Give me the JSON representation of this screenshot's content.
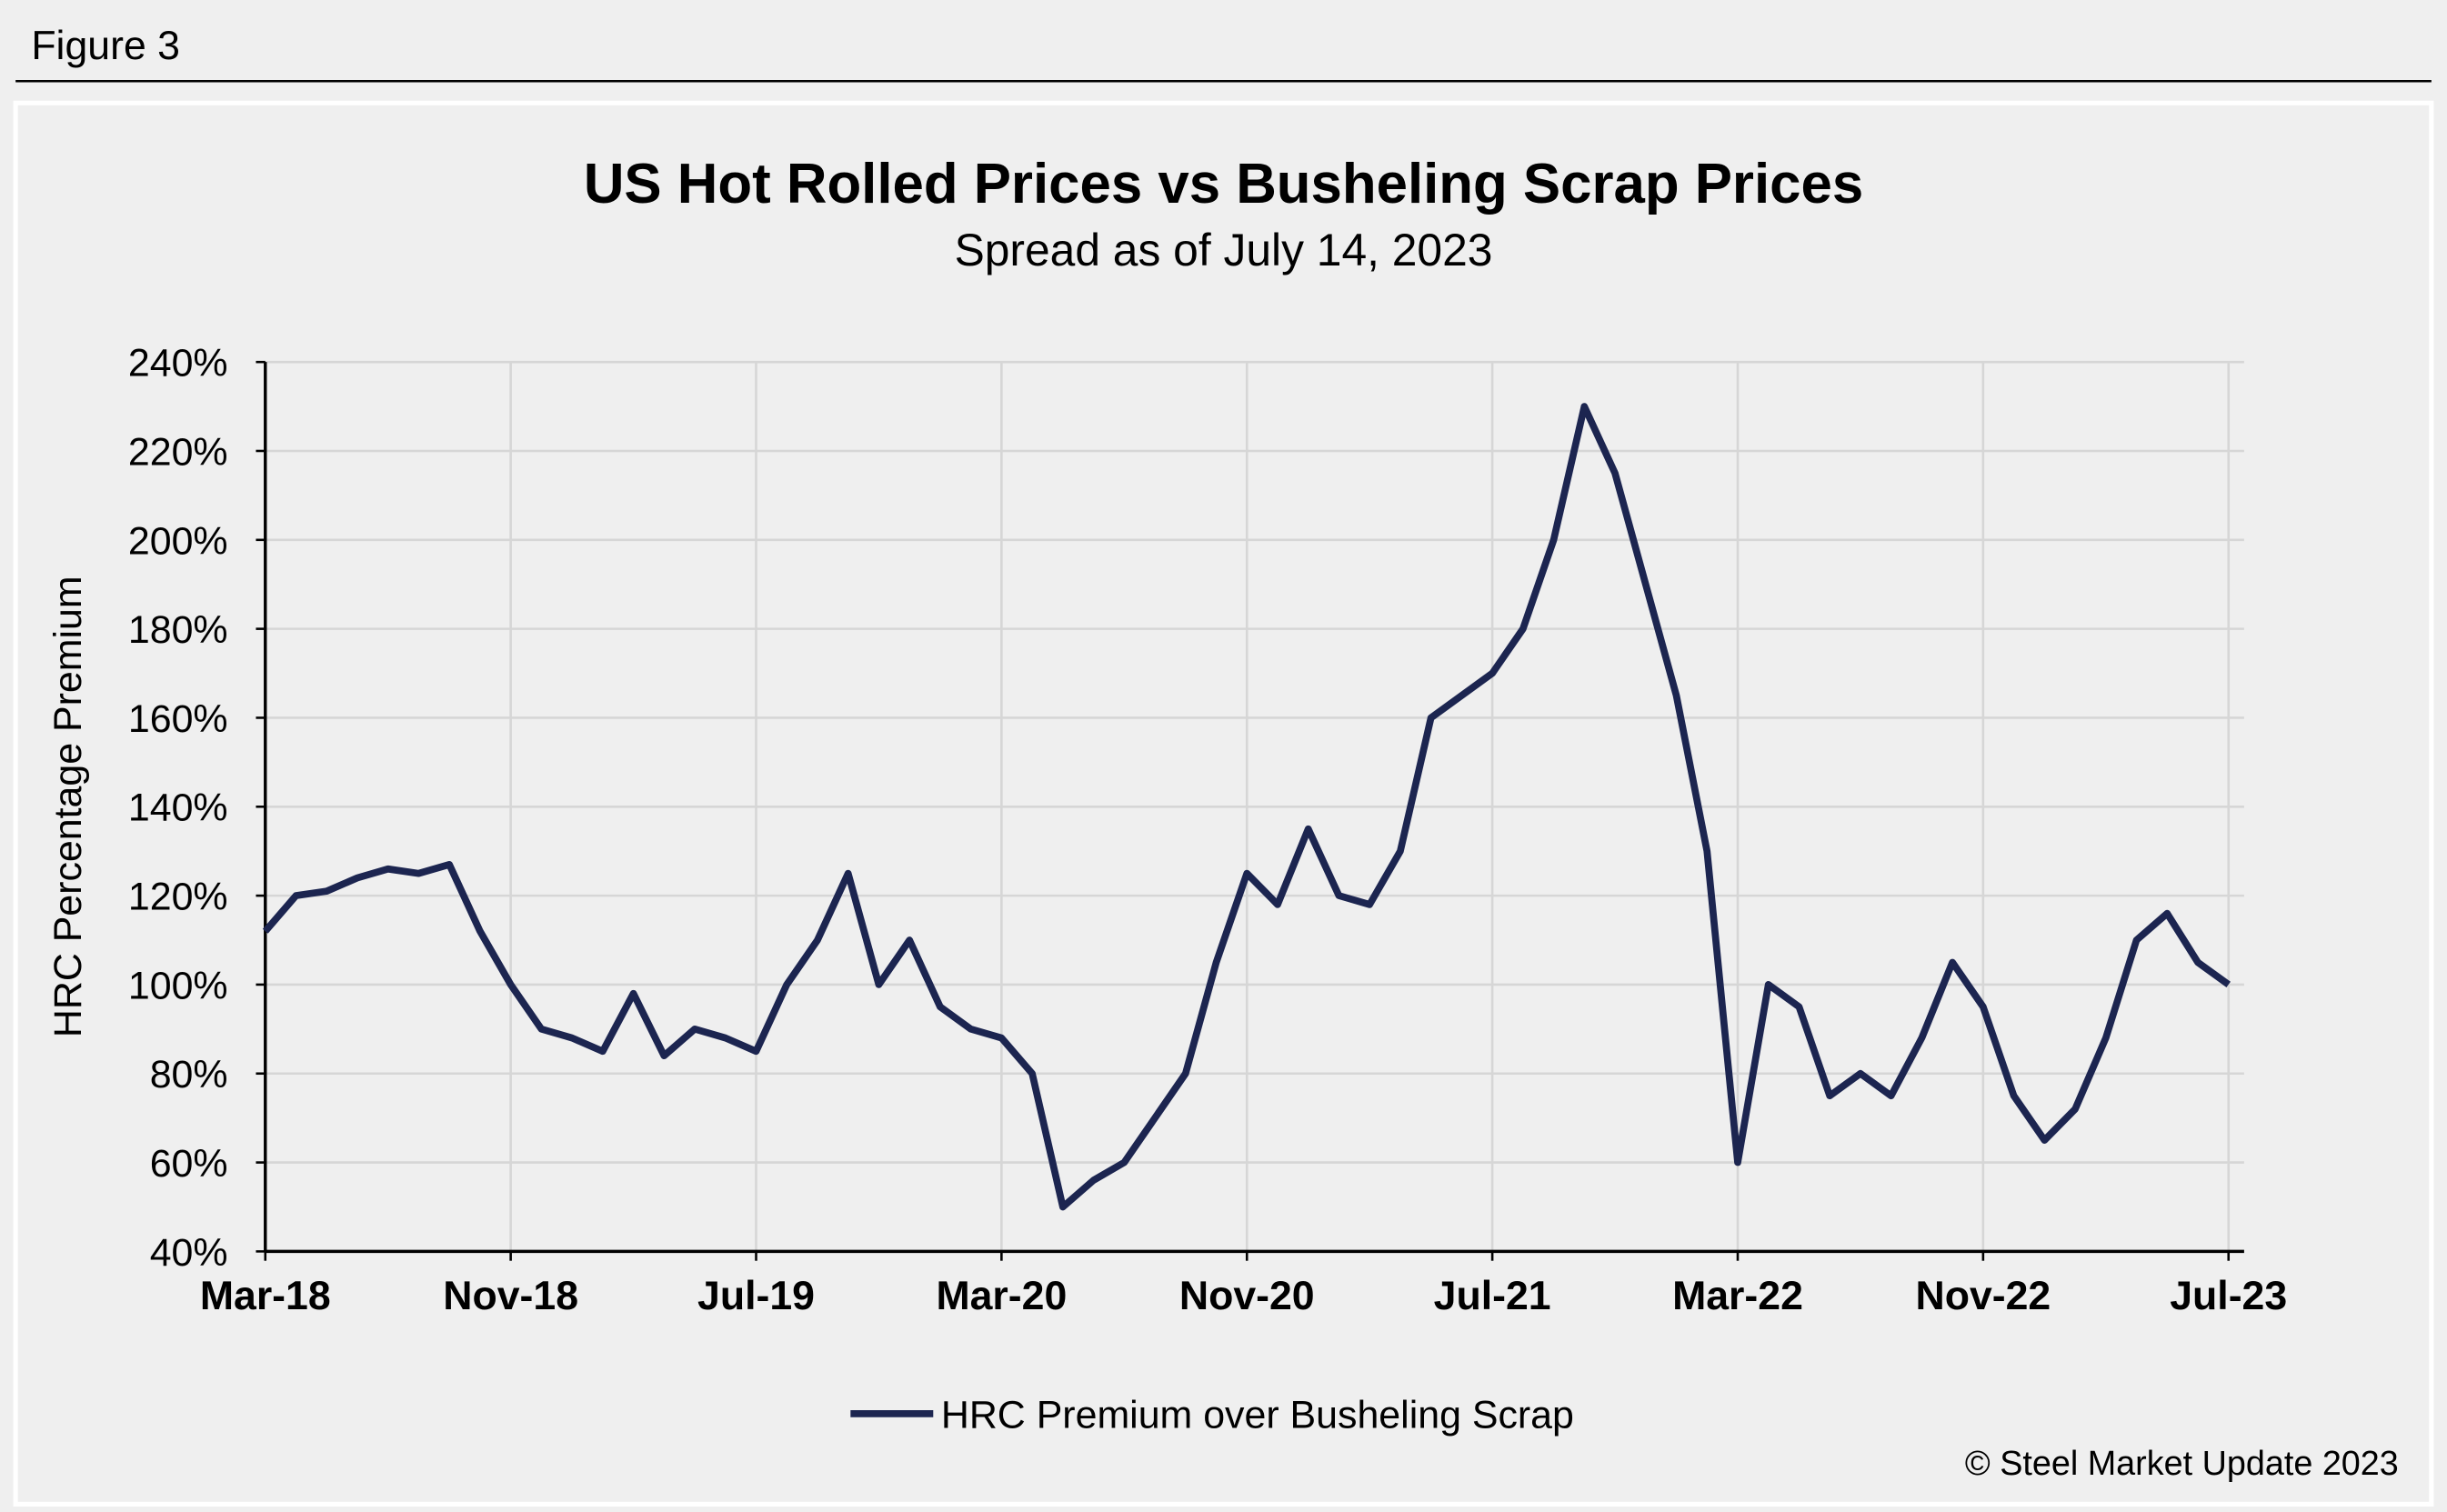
{
  "header": "Figure 3",
  "copyright": "© Steel Market Update 2023",
  "chart_data": {
    "type": "line",
    "title": "US Hot Rolled Prices vs Busheling Scrap Prices",
    "subtitle": "Spread as of July 14, 2023",
    "y_label": "HRC Percentage Premium",
    "grid": true,
    "legend": "bottom",
    "x": [
      "2018-03",
      "2018-04",
      "2018-05",
      "2018-06",
      "2018-07",
      "2018-08",
      "2018-09",
      "2018-10",
      "2018-11",
      "2018-12",
      "2019-01",
      "2019-02",
      "2019-03",
      "2019-04",
      "2019-05",
      "2019-06",
      "2019-07",
      "2019-08",
      "2019-09",
      "2019-10",
      "2019-11",
      "2019-12",
      "2020-01",
      "2020-02",
      "2020-03",
      "2020-04",
      "2020-05",
      "2020-06",
      "2020-07",
      "2020-08",
      "2020-09",
      "2020-10",
      "2020-11",
      "2020-12",
      "2021-01",
      "2021-02",
      "2021-03",
      "2021-04",
      "2021-05",
      "2021-06",
      "2021-07",
      "2021-08",
      "2021-09",
      "2021-10",
      "2021-11",
      "2021-12",
      "2022-01",
      "2022-02",
      "2022-03",
      "2022-04",
      "2022-05",
      "2022-06",
      "2022-07",
      "2022-08",
      "2022-09",
      "2022-10",
      "2022-11",
      "2022-12",
      "2023-01",
      "2023-02",
      "2023-03",
      "2023-04",
      "2023-05",
      "2023-06",
      "2023-07"
    ],
    "series": [
      {
        "name": "HRC Premium over Busheling Scrap",
        "color": "#1c2550",
        "values": [
          112,
          120,
          121,
          124,
          126,
          125,
          127,
          112,
          100,
          90,
          88,
          85,
          98,
          84,
          90,
          88,
          85,
          100,
          110,
          125,
          100,
          110,
          95,
          90,
          88,
          80,
          50,
          56,
          60,
          70,
          80,
          105,
          125,
          118,
          135,
          120,
          118,
          130,
          160,
          165,
          170,
          180,
          200,
          230,
          215,
          190,
          165,
          130,
          60,
          100,
          95,
          75,
          80,
          75,
          88,
          105,
          95,
          75,
          65,
          72,
          88,
          110,
          116,
          105,
          100
        ]
      }
    ],
    "xlim": [
      "2018-03",
      "2023-07"
    ],
    "xticks": [
      {
        "value": "2018-03",
        "label": "Mar-18"
      },
      {
        "value": "2018-11",
        "label": "Nov-18"
      },
      {
        "value": "2019-07",
        "label": "Jul-19"
      },
      {
        "value": "2020-03",
        "label": "Mar-20"
      },
      {
        "value": "2020-11",
        "label": "Nov-20"
      },
      {
        "value": "2021-07",
        "label": "Jul-21"
      },
      {
        "value": "2022-03",
        "label": "Mar-22"
      },
      {
        "value": "2022-11",
        "label": "Nov-22"
      },
      {
        "value": "2023-07",
        "label": "Jul-23"
      }
    ],
    "ylim": [
      40,
      240
    ],
    "yticks": [
      {
        "value": 40,
        "label": "40%"
      },
      {
        "value": 60,
        "label": "60%"
      },
      {
        "value": 80,
        "label": "80%"
      },
      {
        "value": 100,
        "label": "100%"
      },
      {
        "value": 120,
        "label": "120%"
      },
      {
        "value": 140,
        "label": "140%"
      },
      {
        "value": 160,
        "label": "160%"
      },
      {
        "value": 180,
        "label": "180%"
      },
      {
        "value": 200,
        "label": "200%"
      },
      {
        "value": 220,
        "label": "220%"
      },
      {
        "value": 240,
        "label": "240%"
      }
    ]
  }
}
